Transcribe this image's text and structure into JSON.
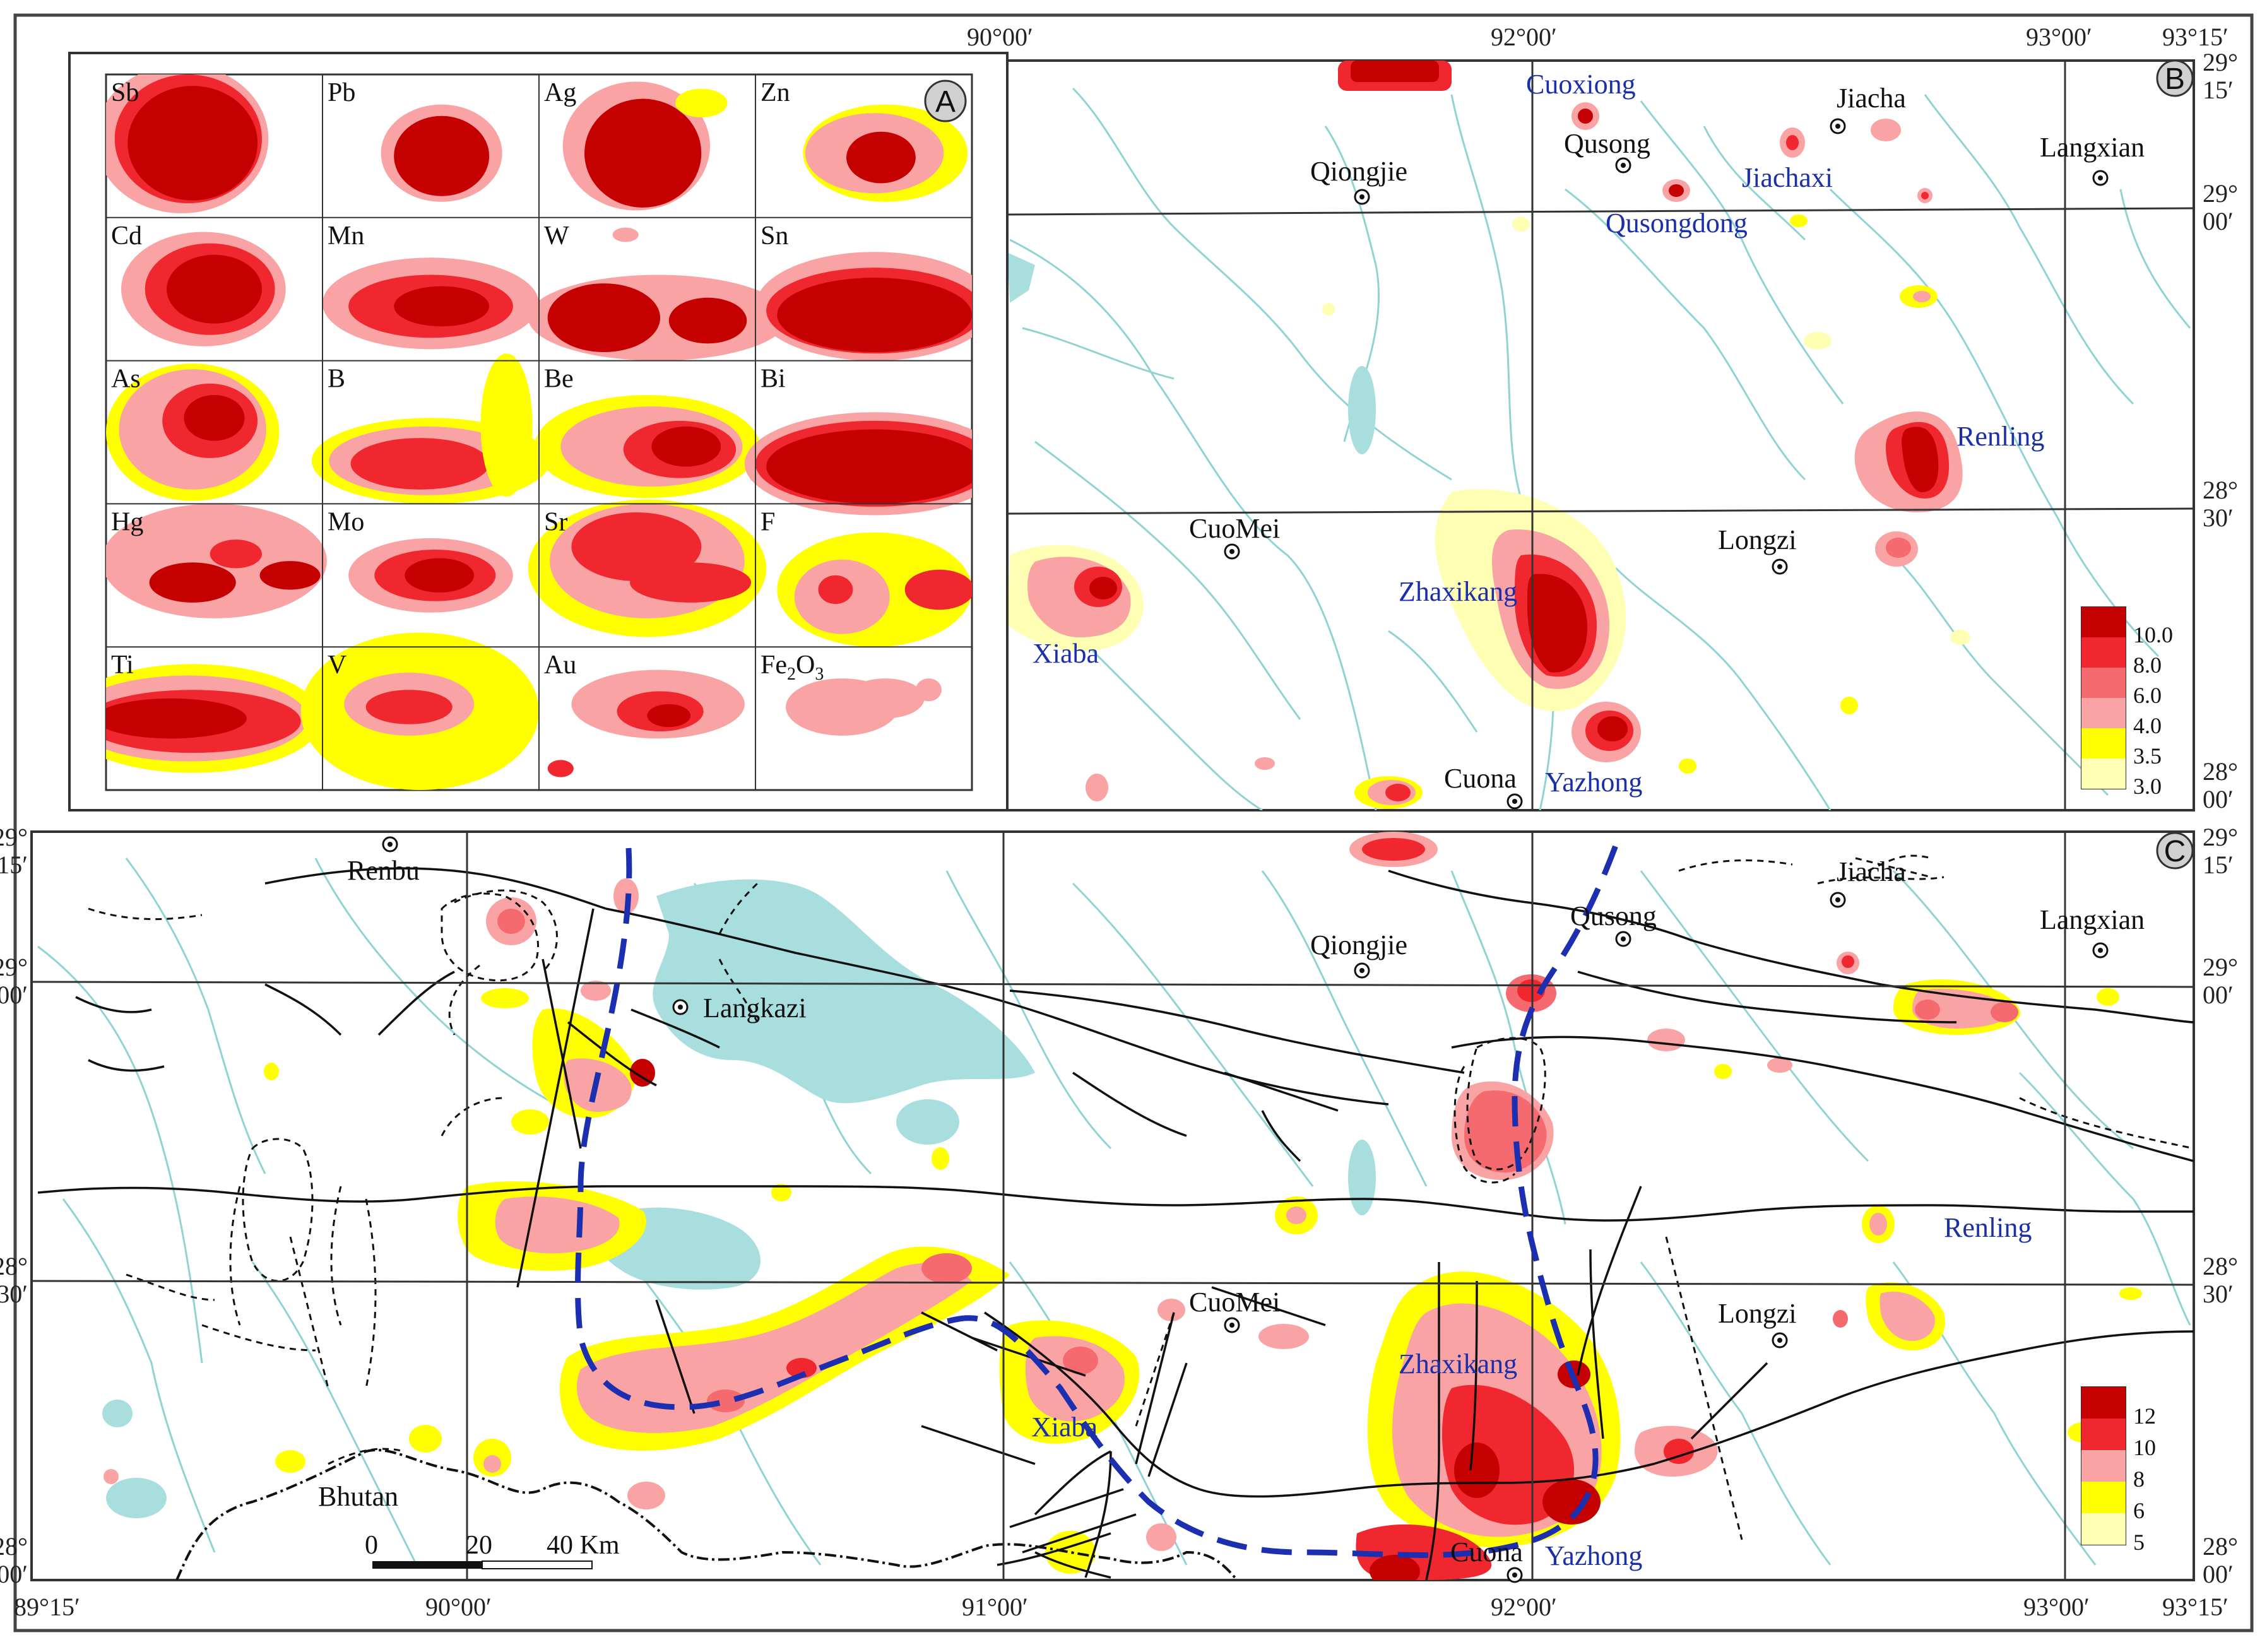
{
  "panels": {
    "a": {
      "label": "A"
    },
    "b": {
      "label": "B"
    },
    "c": {
      "label": "C"
    }
  },
  "elements": [
    {
      "label": "Sb"
    },
    {
      "label": "Pb"
    },
    {
      "label": "Ag"
    },
    {
      "label": "Zn"
    },
    {
      "label": "Cd"
    },
    {
      "label": "Mn"
    },
    {
      "label": "W"
    },
    {
      "label": "Sn"
    },
    {
      "label": "As"
    },
    {
      "label": "B"
    },
    {
      "label": "Be"
    },
    {
      "label": "Bi"
    },
    {
      "label": "Hg"
    },
    {
      "label": "Mo"
    },
    {
      "label": "Sr"
    },
    {
      "label": "F"
    },
    {
      "label": "Ti"
    },
    {
      "label": "V"
    },
    {
      "label": "Au"
    },
    {
      "label": "Fe2O3",
      "main": "Fe",
      "sub1": "2",
      "mid": "O",
      "sub2": "3"
    }
  ],
  "axis_labels": {
    "top_90": "90°00′",
    "top_92": "92°00′",
    "top_93": "93°00′",
    "top_9315": "93°15′",
    "b_2915": [
      "29°",
      "15′"
    ],
    "b_2900": [
      "29°",
      "00′"
    ],
    "b_2830": [
      "28°",
      "30′"
    ],
    "b_2800": [
      "28°",
      "00′"
    ],
    "c_left_2915": [
      "29°",
      "15′"
    ],
    "c_left_2900": [
      "29°",
      "00′"
    ],
    "c_left_2830": [
      "28°",
      "30′"
    ],
    "c_left_2800": [
      "28°",
      "00′"
    ],
    "c_right_2915": [
      "29°",
      "15′"
    ],
    "c_right_2900": [
      "29°",
      "00′"
    ],
    "c_right_2830": [
      "28°",
      "30′"
    ],
    "c_right_2800": [
      "28°",
      "00′"
    ],
    "bottom_8915": "89°15′",
    "bottom_90": "90°00′",
    "bottom_91": "91°00′",
    "bottom_92": "92°00′",
    "bottom_93": "93°00′",
    "bottom_9315": "93°15′"
  },
  "map_b": {
    "towns": {
      "qiongjie": "Qiongjie",
      "qusong": "Qusong",
      "jiacha": "Jiacha",
      "langxian": "Langxian",
      "cuomei": "CuoMei",
      "longzi": "Longzi",
      "cuona": "Cuona"
    },
    "sites": {
      "cuoxiong": "Cuoxiong",
      "jiachaxi": "Jiachaxi",
      "qusongdong": "Qusongdong",
      "renling": "Renling",
      "zhaxikang": "Zhaxikang",
      "xiaba": "Xiaba",
      "yazhong": "Yazhong"
    },
    "legend": [
      {
        "value": "10.0",
        "color": "#c40000"
      },
      {
        "value": "8.0",
        "color": "#f0272e"
      },
      {
        "value": "6.0",
        "color": "#f56a6e"
      },
      {
        "value": "4.0",
        "color": "#f9a3a5"
      },
      {
        "value": "3.5",
        "color": "#ffff00"
      },
      {
        "value": "3.0",
        "color": "#ffffb3"
      }
    ]
  },
  "map_c": {
    "towns": {
      "renbu": "Renbu",
      "langkazi": "Langkazi",
      "qiongjie": "Qiongjie",
      "qusong": "Qusong",
      "jiacha": "Jiacha",
      "langxian": "Langxian",
      "cuomei": "CuoMei",
      "longzi": "Longzi",
      "cuona": "Cuona",
      "bhutan": "Bhutan"
    },
    "sites": {
      "renling": "Renling",
      "zhaxikang": "Zhaxikang",
      "xiaba": "Xiaba",
      "yazhong": "Yazhong"
    },
    "legend": [
      {
        "value": "12",
        "color": "#c40000"
      },
      {
        "value": "10",
        "color": "#f0272e"
      },
      {
        "value": "8",
        "color": "#f9a3a5"
      },
      {
        "value": "6",
        "color": "#ffff00"
      },
      {
        "value": "5",
        "color": "#ffffb3"
      }
    ],
    "scale": {
      "zero": "0",
      "twenty": "20",
      "forty": "40 Km"
    }
  },
  "colors": {
    "dark_red": "#c40000",
    "red": "#f0272e",
    "salmon": "#f56a6e",
    "pink": "#f9a3a5",
    "yellow": "#ffff00",
    "pale_yellow": "#ffffb3",
    "river": "#8fd3d3",
    "lake": "#a9dede",
    "belt_line": "#1b2fb0",
    "site_text": "#1b2fa8"
  }
}
